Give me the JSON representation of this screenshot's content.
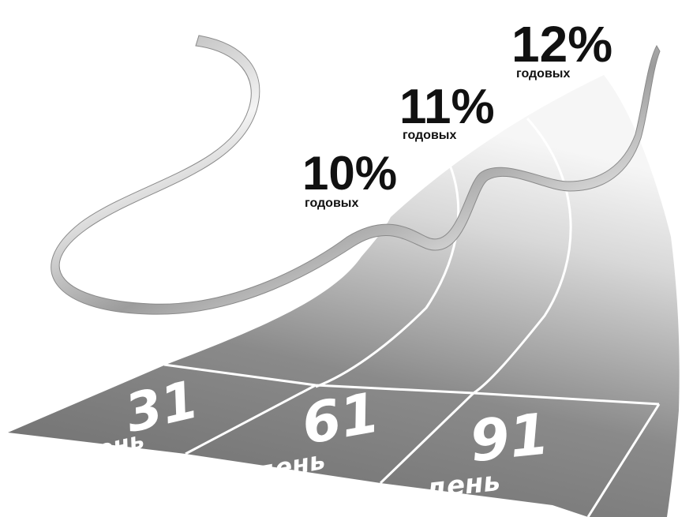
{
  "rates": [
    {
      "value": "10%",
      "caption": "годовых"
    },
    {
      "value": "11%",
      "caption": "годовых"
    },
    {
      "value": "12%",
      "caption": "годовых"
    }
  ],
  "lanes": [
    {
      "number": "31",
      "caption": "день"
    },
    {
      "number": "61",
      "caption": "день"
    },
    {
      "number": "91",
      "caption": "день"
    }
  ],
  "colors": {
    "track_near": "#6e6e6e",
    "track_far": "#f2f2f2",
    "lane_line": "#ffffff",
    "text_dark": "#111111",
    "ribbon_light": "#f4f4f4",
    "ribbon_dark": "#9a9a9a"
  }
}
